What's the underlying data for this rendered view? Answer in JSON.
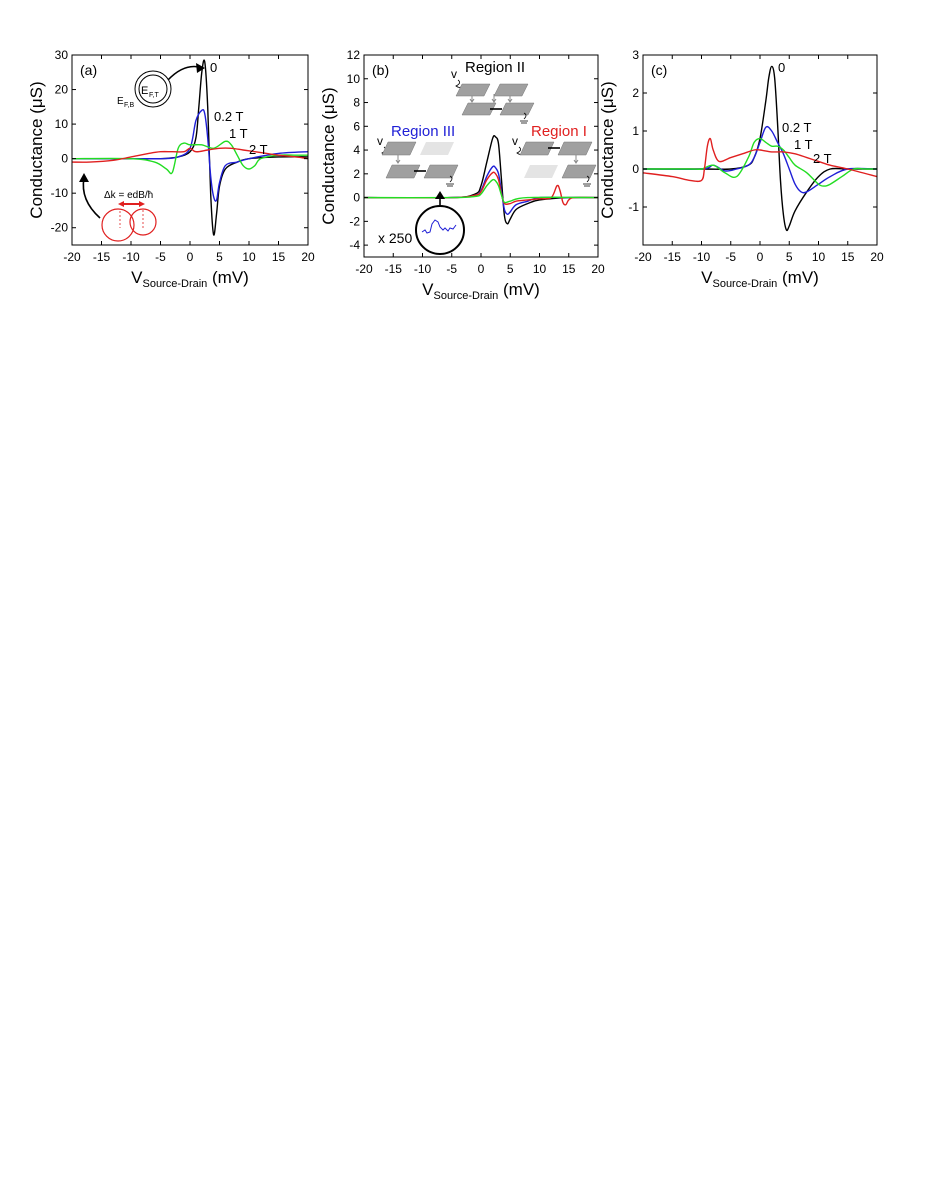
{
  "colors": {
    "black": "#000000",
    "blue": "#1f1fd6",
    "red": "#e02020",
    "green": "#22dd22",
    "panel_frame": "#000000"
  },
  "chart_data": [
    {
      "type": "line",
      "panel_label": "(a)",
      "ylabel": "Conductance (μS)",
      "xlabel_main": "V",
      "xlabel_sub": "Source-Drain",
      "xlabel_unit": "(mV)",
      "xlim": [
        -20,
        20
      ],
      "ylim": [
        -25,
        30
      ],
      "xticks": [
        -20,
        -15,
        -10,
        -5,
        0,
        5,
        10,
        15,
        20
      ],
      "yticks": [
        -20,
        -10,
        0,
        10,
        20,
        30
      ],
      "series": [
        {
          "name": "0",
          "color": "#000000",
          "x": [
            -20,
            -10,
            -5,
            -2,
            0,
            1,
            1.5,
            2,
            2.5,
            3,
            3.5,
            4,
            4.5,
            5,
            6,
            8,
            10,
            15,
            20
          ],
          "y": [
            0,
            0,
            0,
            0.5,
            2,
            6,
            15,
            25,
            28,
            15,
            -10,
            -22,
            -16,
            -8,
            -3,
            -1,
            0,
            0.5,
            0.5
          ]
        },
        {
          "name": "0.2 T",
          "color": "#1f1fd6",
          "x": [
            -20,
            -10,
            -5,
            -2,
            0,
            1,
            2,
            2.5,
            3,
            3.5,
            4,
            4.5,
            5,
            6,
            8,
            10,
            15,
            20
          ],
          "y": [
            0,
            0,
            0,
            0.5,
            3,
            11,
            14,
            13,
            6,
            -5,
            -11,
            -12,
            -7,
            -2,
            -1,
            0,
            1.5,
            2
          ]
        },
        {
          "name": "1 T",
          "color": "#22dd22",
          "x": [
            -20,
            -10,
            -6,
            -4,
            -3,
            -2,
            -1,
            0,
            2,
            4,
            6,
            7,
            8,
            9,
            10,
            11,
            12,
            15,
            18,
            20
          ],
          "y": [
            0,
            0,
            -1,
            -3,
            -4,
            3,
            4.5,
            4,
            4,
            3,
            5,
            4,
            1,
            -2,
            -3,
            -2,
            0,
            1,
            1,
            1
          ]
        },
        {
          "name": "2 T",
          "color": "#e02020",
          "x": [
            -20,
            -17,
            -13,
            -10,
            -7,
            -5,
            -3,
            -1,
            0,
            1,
            3,
            5,
            7,
            9,
            11,
            13,
            15,
            18,
            20
          ],
          "y": [
            -1,
            -1,
            -0.5,
            0.5,
            1.5,
            2,
            2,
            2,
            3,
            2,
            2.5,
            3,
            3,
            2.5,
            2,
            1.5,
            1,
            0.5,
            0
          ]
        }
      ],
      "annotations": {
        "curve_labels": [
          "0",
          "0.2 T",
          "1 T",
          "2 T"
        ],
        "fermi_top": "E",
        "fermi_top_sub": "F,T",
        "fermi_bottom": "E",
        "fermi_bottom_sub": "F,B",
        "delta_k": "Δk = edB/ħ"
      }
    },
    {
      "type": "line",
      "panel_label": "(b)",
      "ylabel": "Conductance (μS)",
      "xlabel_main": "V",
      "xlabel_sub": "Source-Drain",
      "xlabel_unit": "(mV)",
      "xlim": [
        -20,
        20
      ],
      "ylim": [
        -5,
        12
      ],
      "xticks": [
        -20,
        -15,
        -10,
        -5,
        0,
        5,
        10,
        15,
        20
      ],
      "yticks": [
        -4,
        -2,
        0,
        2,
        4,
        6,
        8,
        10,
        12
      ],
      "series": [
        {
          "color": "#000000",
          "x": [
            -20,
            -5,
            -1,
            0,
            1,
            2,
            2.5,
            3,
            3.5,
            4,
            4.5,
            5,
            6,
            8,
            10,
            15,
            20
          ],
          "y": [
            0,
            0,
            0.3,
            1,
            3,
            5,
            5.1,
            4.5,
            1.5,
            -1.5,
            -2.2,
            -1.8,
            -1,
            -0.5,
            -0.2,
            0,
            0
          ]
        },
        {
          "color": "#1f1fd6",
          "x": [
            -20,
            -5,
            -1,
            0,
            1,
            2,
            2.5,
            3,
            3.5,
            4,
            4.5,
            5,
            6,
            8,
            10,
            15,
            20
          ],
          "y": [
            0,
            0,
            0.2,
            0.6,
            1.8,
            2.6,
            2.5,
            2,
            0.5,
            -1,
            -1.4,
            -1.2,
            -0.6,
            -0.3,
            0,
            0,
            0
          ]
        },
        {
          "color": "#e02020",
          "x": [
            -20,
            -5,
            -1,
            0,
            1,
            2,
            2.5,
            3,
            3.5,
            4,
            5,
            6,
            8,
            10,
            12,
            13,
            13.5,
            14,
            14.5,
            15,
            16,
            20
          ],
          "y": [
            0,
            0,
            0.2,
            0.5,
            1.5,
            2.1,
            2,
            1.5,
            0.3,
            -0.5,
            -0.5,
            -0.3,
            -0.2,
            -0.1,
            0,
            1,
            0.6,
            -0.4,
            -0.6,
            -0.2,
            0,
            0
          ]
        },
        {
          "color": "#22dd22",
          "x": [
            -20,
            -5,
            -1,
            0,
            1,
            2,
            2.5,
            3,
            3.5,
            4,
            5,
            8,
            20
          ],
          "y": [
            0,
            0,
            0.1,
            0.3,
            1,
            1.5,
            1.4,
            1,
            0.2,
            -0.4,
            -0.3,
            0,
            0
          ]
        }
      ],
      "annotations": {
        "region_labels": [
          "Region II",
          "Region III",
          "Region I"
        ],
        "v_label": "v",
        "magnification": "x 250"
      }
    },
    {
      "type": "line",
      "panel_label": "(c)",
      "ylabel": "Conductance (μS)",
      "xlabel_main": "V",
      "xlabel_sub": "Source-Drain",
      "xlabel_unit": "(mV)",
      "xlim": [
        -20,
        20
      ],
      "ylim": [
        -2,
        3
      ],
      "xticks": [
        -20,
        -15,
        -10,
        -5,
        0,
        5,
        10,
        15,
        20
      ],
      "yticks": [
        -1,
        0,
        1,
        2,
        3
      ],
      "series": [
        {
          "name": "0",
          "color": "#000000",
          "x": [
            -20,
            -10,
            -5,
            -2,
            -1,
            0,
            1,
            1.5,
            2,
            2.5,
            3,
            3.5,
            4,
            4.5,
            5,
            6,
            8,
            10,
            12,
            15,
            20
          ],
          "y": [
            0,
            0,
            0,
            0.1,
            0.3,
            0.8,
            1.8,
            2.4,
            2.7,
            2.4,
            1.2,
            -0.3,
            -1.2,
            -1.6,
            -1.5,
            -1.1,
            -0.6,
            -0.2,
            0,
            0,
            0
          ]
        },
        {
          "name": "0.2 T",
          "color": "#1f1fd6",
          "x": [
            -20,
            -10,
            -8,
            -6,
            -4,
            -2,
            -1,
            0,
            1,
            2,
            3,
            4,
            5,
            6,
            7,
            8,
            10,
            12,
            15,
            20
          ],
          "y": [
            0,
            0,
            0.1,
            -0.05,
            0,
            0.1,
            0.3,
            0.7,
            1.1,
            1,
            0.7,
            0.4,
            0,
            -0.4,
            -0.6,
            -0.6,
            -0.4,
            -0.2,
            0,
            0
          ]
        },
        {
          "name": "1 T",
          "color": "#22dd22",
          "x": [
            -20,
            -12,
            -10,
            -8,
            -6,
            -4,
            -2,
            -1,
            0,
            1,
            2,
            3,
            4,
            5,
            6,
            8,
            10,
            11,
            12,
            14,
            16,
            18,
            20
          ],
          "y": [
            0,
            0,
            0,
            0.1,
            -0.1,
            -0.2,
            0.3,
            0.7,
            0.8,
            0.7,
            0.6,
            0.6,
            0.5,
            0.3,
            0.1,
            -0.1,
            -0.4,
            -0.45,
            -0.4,
            -0.2,
            0,
            0,
            0
          ]
        },
        {
          "name": "2 T",
          "color": "#e02020",
          "x": [
            -20,
            -15,
            -12,
            -10,
            -9.5,
            -9,
            -8.5,
            -8,
            -7,
            -5,
            -3,
            -1,
            0,
            2,
            4,
            6,
            8,
            10,
            12,
            15,
            20
          ],
          "y": [
            -0.1,
            -0.2,
            -0.3,
            -0.3,
            0,
            0.6,
            0.8,
            0.5,
            0.2,
            0.3,
            0.4,
            0.5,
            0.5,
            0.45,
            0.45,
            0.4,
            0.3,
            0.2,
            0.1,
            0,
            -0.2
          ]
        }
      ],
      "annotations": {
        "curve_labels": [
          "0",
          "0.2 T",
          "1 T",
          "2 T"
        ]
      }
    }
  ]
}
